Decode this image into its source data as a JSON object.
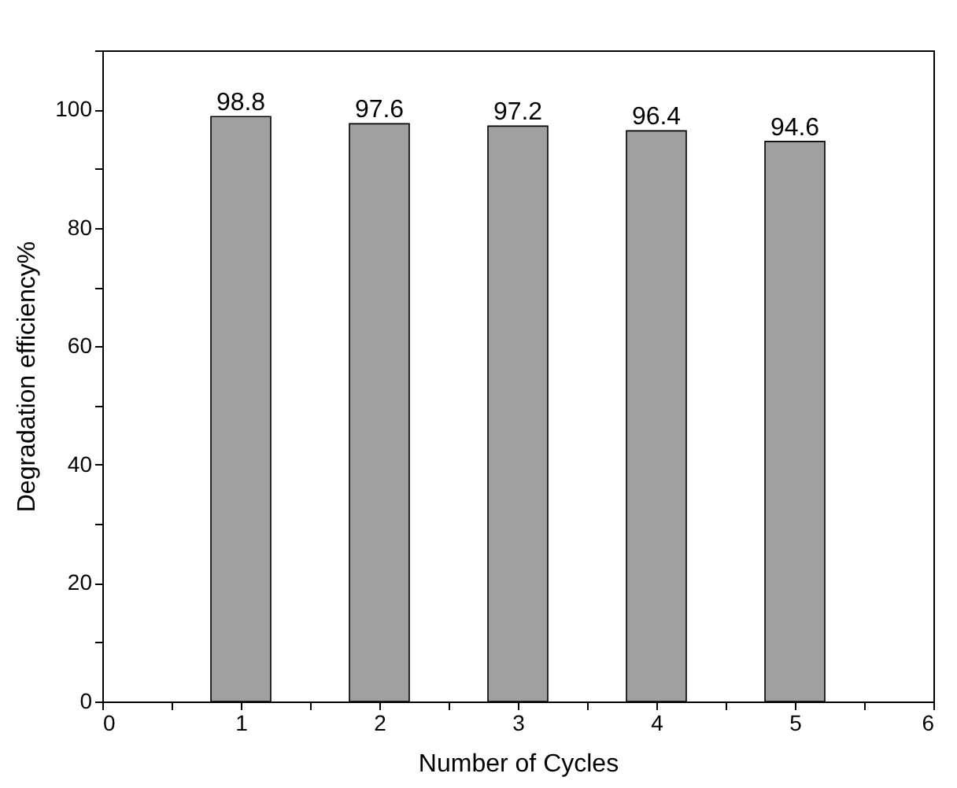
{
  "chart_data": {
    "type": "bar",
    "xlabel": "Number of Cycles",
    "ylabel": "Degradation efficiency%",
    "x": [
      1,
      2,
      3,
      4,
      5
    ],
    "values": [
      98.8,
      97.6,
      97.2,
      96.4,
      94.6
    ],
    "color": "#a0a0a0",
    "data_labels": true,
    "xlim": [
      0,
      6
    ],
    "xticks": [
      0,
      {
        "value": 0.5,
        "label": null
      },
      1,
      {
        "value": 1.5,
        "label": null
      },
      2,
      {
        "value": 2.5,
        "label": null
      },
      3,
      {
        "value": 3.5,
        "label": null
      },
      4,
      {
        "value": 4.5,
        "label": null
      },
      5,
      {
        "value": 5.5,
        "label": null
      },
      6
    ],
    "ylim": [
      0,
      110
    ],
    "yticks": [
      0,
      {
        "value": 10,
        "label": null
      },
      20,
      {
        "value": 30,
        "label": null
      },
      40,
      {
        "value": 50,
        "label": null
      },
      60,
      {
        "value": 70,
        "label": null
      },
      80,
      {
        "value": 90,
        "label": null
      },
      100,
      {
        "value": 110,
        "label": null
      }
    ],
    "grid": false
  }
}
